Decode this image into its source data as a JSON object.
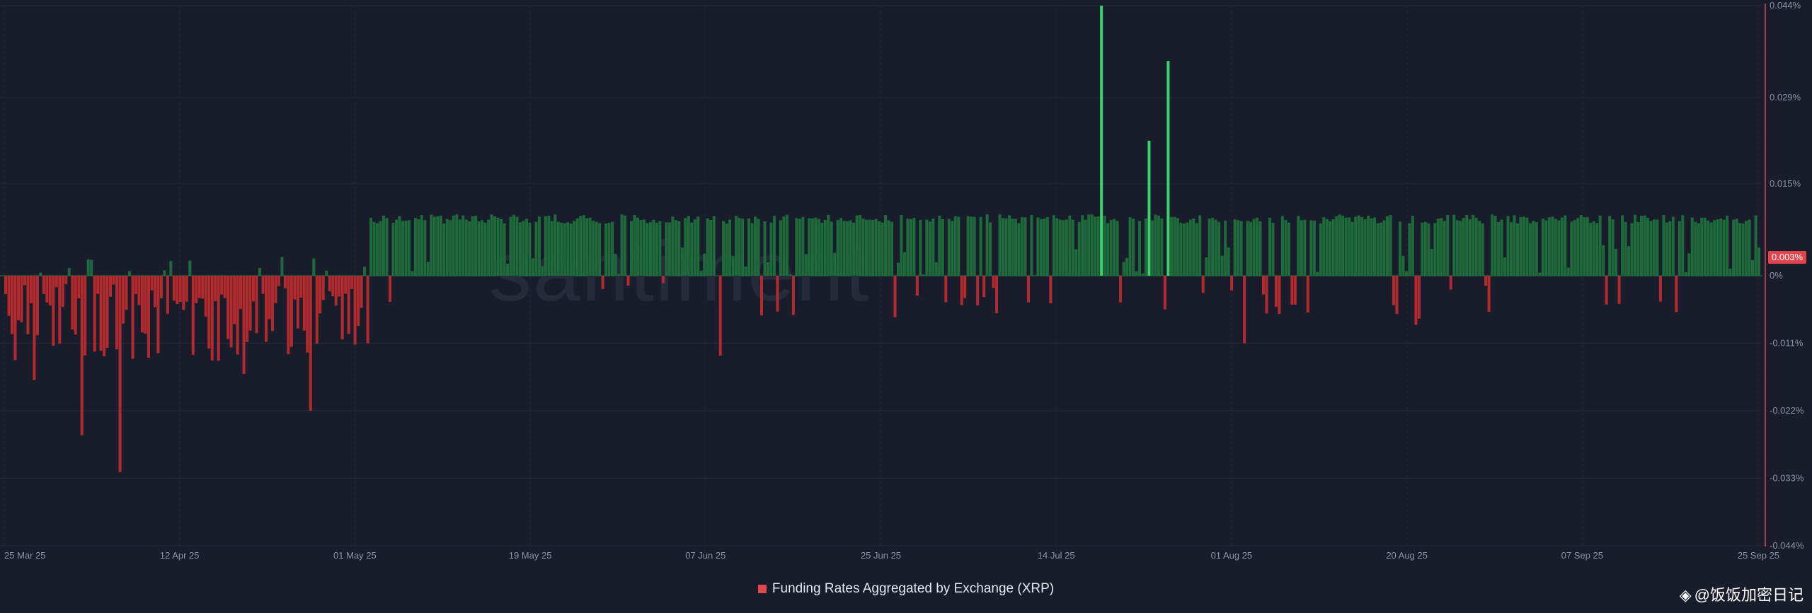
{
  "chart_data": {
    "type": "bar",
    "series": [
      {
        "name": "Funding Rates Aggregated by Exchange (XRP)",
        "unit": "%"
      }
    ],
    "ylim": [
      -0.044,
      0.044
    ],
    "y_ticks": [
      "0.044%",
      "0.029%",
      "0.015%",
      "0%",
      "-0.011%",
      "-0.022%",
      "-0.033%",
      "-0.044%"
    ],
    "y_tick_values": [
      0.044,
      0.029,
      0.015,
      0,
      -0.011,
      -0.022,
      -0.033,
      -0.044
    ],
    "x_ticks": [
      "25 Mar 25",
      "12 Apr 25",
      "01 May 25",
      "19 May 25",
      "07 Jun 25",
      "25 Jun 25",
      "14 Jul 25",
      "01 Aug 25",
      "20 Aug 25",
      "07 Sep 25",
      "25 Sep 25"
    ],
    "x_range": [
      "2025-03-25",
      "2025-09-25"
    ],
    "current_value_label": "0.003%",
    "current_value": 0.003,
    "watermark": "santiment",
    "typical_positive_rate": 0.01,
    "notable_values": [
      {
        "date": "2025-03-28",
        "value": -0.017
      },
      {
        "date": "2025-04-02",
        "value": -0.026
      },
      {
        "date": "2025-04-06",
        "value": -0.032
      },
      {
        "date": "2025-04-19",
        "value": -0.016
      },
      {
        "date": "2025-04-26",
        "value": -0.022
      },
      {
        "date": "2025-05-02",
        "value": -0.011
      },
      {
        "date": "2025-06-08",
        "value": -0.013
      },
      {
        "date": "2025-07-18",
        "value": 0.044
      },
      {
        "date": "2025-07-23",
        "value": 0.022
      },
      {
        "date": "2025-07-25",
        "value": 0.035
      },
      {
        "date": "2025-08-02",
        "value": -0.011
      },
      {
        "date": "2025-08-20",
        "value": -0.008
      }
    ],
    "colors": {
      "positive": "#1e6a3a",
      "positive_peak": "#3bd06a",
      "negative": "#b02a2e",
      "zero_line": "#2a7a45",
      "cursor_line": "#e0454e"
    },
    "grid": true,
    "legend_position": "bottom-center"
  },
  "credit": {
    "text": "@饭饭加密日记"
  }
}
